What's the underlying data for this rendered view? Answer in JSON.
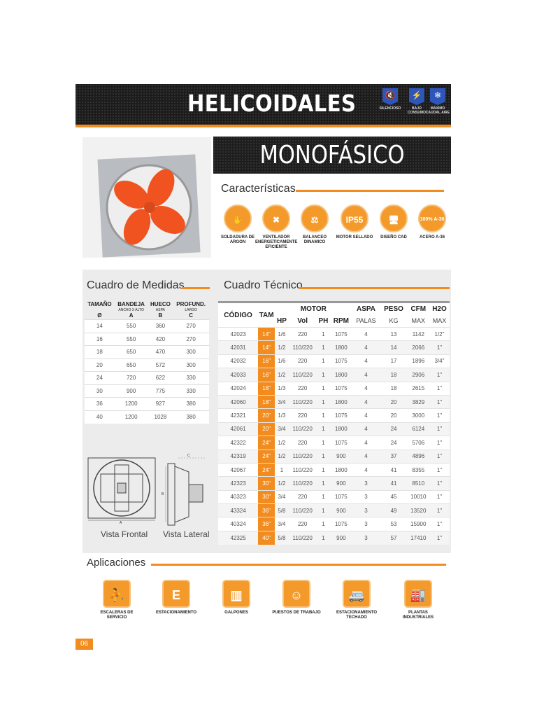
{
  "header": {
    "title": "HELICOIDALES",
    "badges": [
      {
        "label": "SILENCIOSO",
        "icon": "silent-icon"
      },
      {
        "label": "BAJO CONSUMO",
        "icon": "low-consumption-icon"
      },
      {
        "label": "MAXIMO CAUDAL AIRE",
        "icon": "max-airflow-icon"
      }
    ]
  },
  "subtitle": "MONOFÁSICO",
  "features": {
    "title": "Características",
    "items": [
      {
        "label": "SOLDADURA DE ARGON",
        "glyph": "✋"
      },
      {
        "label": "VENTILADOR ENERGETICAMENTE EFICIENTE",
        "glyph": "✖"
      },
      {
        "label": "BALANCEO DINAMICO",
        "glyph": "⚖"
      },
      {
        "label": "MOTOR SELLADO",
        "glyph": "IP55"
      },
      {
        "label": "DISEÑO CAD",
        "glyph": "🖥"
      },
      {
        "label": "ACERO A-36",
        "glyph": "100% A-36"
      }
    ]
  },
  "medidas": {
    "title": "Cuadro de Medidas",
    "headers": [
      {
        "main": "TAMAÑO",
        "sub": "",
        "sub2": "Ø"
      },
      {
        "main": "BANDEJA",
        "sub": "ANCHO X ALTO",
        "sub2": "A"
      },
      {
        "main": "HUECO",
        "sub": "ASPA",
        "sub2": "B"
      },
      {
        "main": "PROFUND.",
        "sub": "LARGO",
        "sub2": "C"
      }
    ],
    "rows": [
      [
        "14",
        "550",
        "360",
        "270"
      ],
      [
        "16",
        "550",
        "420",
        "270"
      ],
      [
        "18",
        "650",
        "470",
        "300"
      ],
      [
        "20",
        "650",
        "572",
        "300"
      ],
      [
        "24",
        "720",
        "622",
        "330"
      ],
      [
        "30",
        "900",
        "775",
        "330"
      ],
      [
        "36",
        "1200",
        "927",
        "380"
      ],
      [
        "40",
        "1200",
        "1028",
        "380"
      ]
    ]
  },
  "views": {
    "frontal": "Vista Frontal",
    "lateral": "Vista Lateral",
    "dim_a": "A",
    "dim_b": "B",
    "dim_c": "C"
  },
  "tecnico": {
    "title": "Cuadro Técnico",
    "headers": {
      "codigo": "CÓDIGO",
      "tam": "TAM",
      "motor": "MOTOR",
      "aspa": "ASPA",
      "peso": "PESO",
      "cfm": "CFM",
      "h2o": "H2O",
      "hp": "HP",
      "vol": "Vol",
      "ph": "PH",
      "rpm": "RPM",
      "palas": "PALAS",
      "kg": "KG",
      "cfm_max": "MAX",
      "h2o_max": "MAX"
    },
    "rows": [
      [
        "42023",
        "14\"",
        "1/6",
        "220",
        "1",
        "1075",
        "4",
        "13",
        "1142",
        "1/2\""
      ],
      [
        "42031",
        "14\"",
        "1/2",
        "110/220",
        "1",
        "1800",
        "4",
        "14",
        "2066",
        "1\""
      ],
      [
        "42032",
        "16\"",
        "1/6",
        "220",
        "1",
        "1075",
        "4",
        "17",
        "1896",
        "3/4\""
      ],
      [
        "42033",
        "16\"",
        "1/2",
        "110/220",
        "1",
        "1800",
        "4",
        "18",
        "2906",
        "1\""
      ],
      [
        "42024",
        "18\"",
        "1/3",
        "220",
        "1",
        "1075",
        "4",
        "18",
        "2615",
        "1\""
      ],
      [
        "42060",
        "18\"",
        "3/4",
        "110/220",
        "1",
        "1800",
        "4",
        "20",
        "3829",
        "1\""
      ],
      [
        "42321",
        "20\"",
        "1/3",
        "220",
        "1",
        "1075",
        "4",
        "20",
        "3000",
        "1\""
      ],
      [
        "42061",
        "20\"",
        "3/4",
        "110/220",
        "1",
        "1800",
        "4",
        "24",
        "6124",
        "1\""
      ],
      [
        "42322",
        "24\"",
        "1/2",
        "220",
        "1",
        "1075",
        "4",
        "24",
        "5706",
        "1\""
      ],
      [
        "42319",
        "24\"",
        "1/2",
        "110/220",
        "1",
        "900",
        "4",
        "37",
        "4896",
        "1\""
      ],
      [
        "42067",
        "24\"",
        "1",
        "110/220",
        "1",
        "1800",
        "4",
        "41",
        "8355",
        "1\""
      ],
      [
        "42323",
        "30\"",
        "1/2",
        "110/220",
        "1",
        "900",
        "3",
        "41",
        "8510",
        "1\""
      ],
      [
        "40323",
        "30\"",
        "3/4",
        "220",
        "1",
        "1075",
        "3",
        "45",
        "10010",
        "1\""
      ],
      [
        "43324",
        "36\"",
        "5/8",
        "110/220",
        "1",
        "900",
        "3",
        "49",
        "13520",
        "1\""
      ],
      [
        "40324",
        "36\"",
        "3/4",
        "220",
        "1",
        "1075",
        "3",
        "53",
        "15900",
        "1\""
      ],
      [
        "42325",
        "40\"",
        "5/8",
        "110/220",
        "1",
        "900",
        "3",
        "57",
        "17410",
        "1\""
      ]
    ]
  },
  "aplicaciones": {
    "title": "Aplicaciones",
    "items": [
      {
        "label": "ESCALERAS DE SERVICIO",
        "glyph": "⛹"
      },
      {
        "label": "ESTACIONAMIENTO",
        "glyph": "E"
      },
      {
        "label": "GALPONES",
        "glyph": "▥"
      },
      {
        "label": "PUESTOS DE TRABAJO",
        "glyph": "☺"
      },
      {
        "label": "ESTACIONAMIENTO TECHADO",
        "glyph": "🚐"
      },
      {
        "label": "PLANTAS INDUSTRIALES",
        "glyph": "🏭"
      }
    ]
  },
  "colors": {
    "accent": "#f28c1e",
    "badge": "#2e55b8",
    "dark": "#1c1c1c"
  },
  "page_number": "06"
}
